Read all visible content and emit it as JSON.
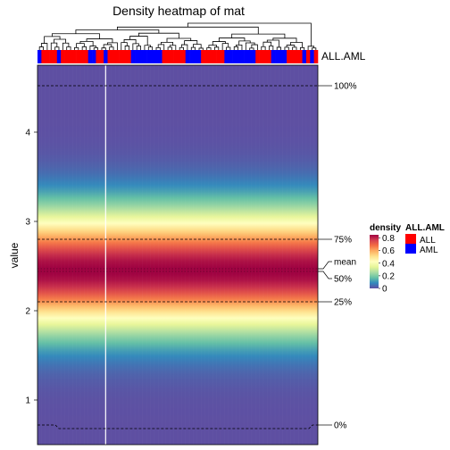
{
  "chart_data": {
    "type": "heatmap",
    "title": "Density heatmap of mat",
    "ylabel": "value",
    "ylim": [
      0.5,
      4.75
    ],
    "y_ticks": [
      1,
      2,
      3,
      4
    ],
    "n_columns": 72,
    "annotation": {
      "name": "ALL.AML",
      "labels": [
        "ALL",
        "AML"
      ],
      "colors": {
        "ALL": "#ff0000",
        "AML": "#0000ff"
      },
      "column_groups": [
        "AML",
        "ALL",
        "ALL",
        "ALL",
        "ALL",
        "AML",
        "ALL",
        "ALL",
        "ALL",
        "ALL",
        "ALL",
        "ALL",
        "ALL",
        "AML",
        "AML",
        "ALL",
        "ALL",
        "AML",
        "ALL",
        "ALL",
        "ALL",
        "ALL",
        "ALL",
        "ALL",
        "AML",
        "AML",
        "AML",
        "AML",
        "AML",
        "AML",
        "AML",
        "AML",
        "ALL",
        "ALL",
        "ALL",
        "ALL",
        "ALL",
        "ALL",
        "AML",
        "AML",
        "AML",
        "AML",
        "ALL",
        "ALL",
        "ALL",
        "ALL",
        "ALL",
        "ALL",
        "AML",
        "AML",
        "AML",
        "AML",
        "AML",
        "AML",
        "AML",
        "AML",
        "ALL",
        "ALL",
        "ALL",
        "ALL",
        "AML",
        "AML",
        "AML",
        "AML",
        "ALL",
        "ALL",
        "ALL",
        "ALL",
        "AML",
        "ALL",
        "AML",
        "ALL"
      ]
    },
    "density_legend": {
      "title": "density",
      "ticks": [
        "0.8",
        "0.6",
        "0.4",
        "0.2",
        "0"
      ],
      "range": [
        0,
        0.85
      ]
    },
    "density_profile": {
      "mean_value": 2.45,
      "spread": 0.45,
      "peak": 0.85
    },
    "quantile_lines": [
      {
        "label": "100%",
        "value": 4.52
      },
      {
        "label": "75%",
        "value": 2.8
      },
      {
        "label": "mean",
        "value": 2.47
      },
      {
        "label": "50%",
        "value": 2.44
      },
      {
        "label": "25%",
        "value": 2.1
      },
      {
        "label": "0%",
        "value": 0.72
      }
    ],
    "highlight_column": 17,
    "colors": {
      "palette": [
        "#5e4fa2",
        "#3288bd",
        "#66c2a5",
        "#abdda4",
        "#e6f598",
        "#ffffbf",
        "#fee08b",
        "#fdae61",
        "#f46d43",
        "#d53e4f",
        "#9e0142"
      ]
    }
  }
}
